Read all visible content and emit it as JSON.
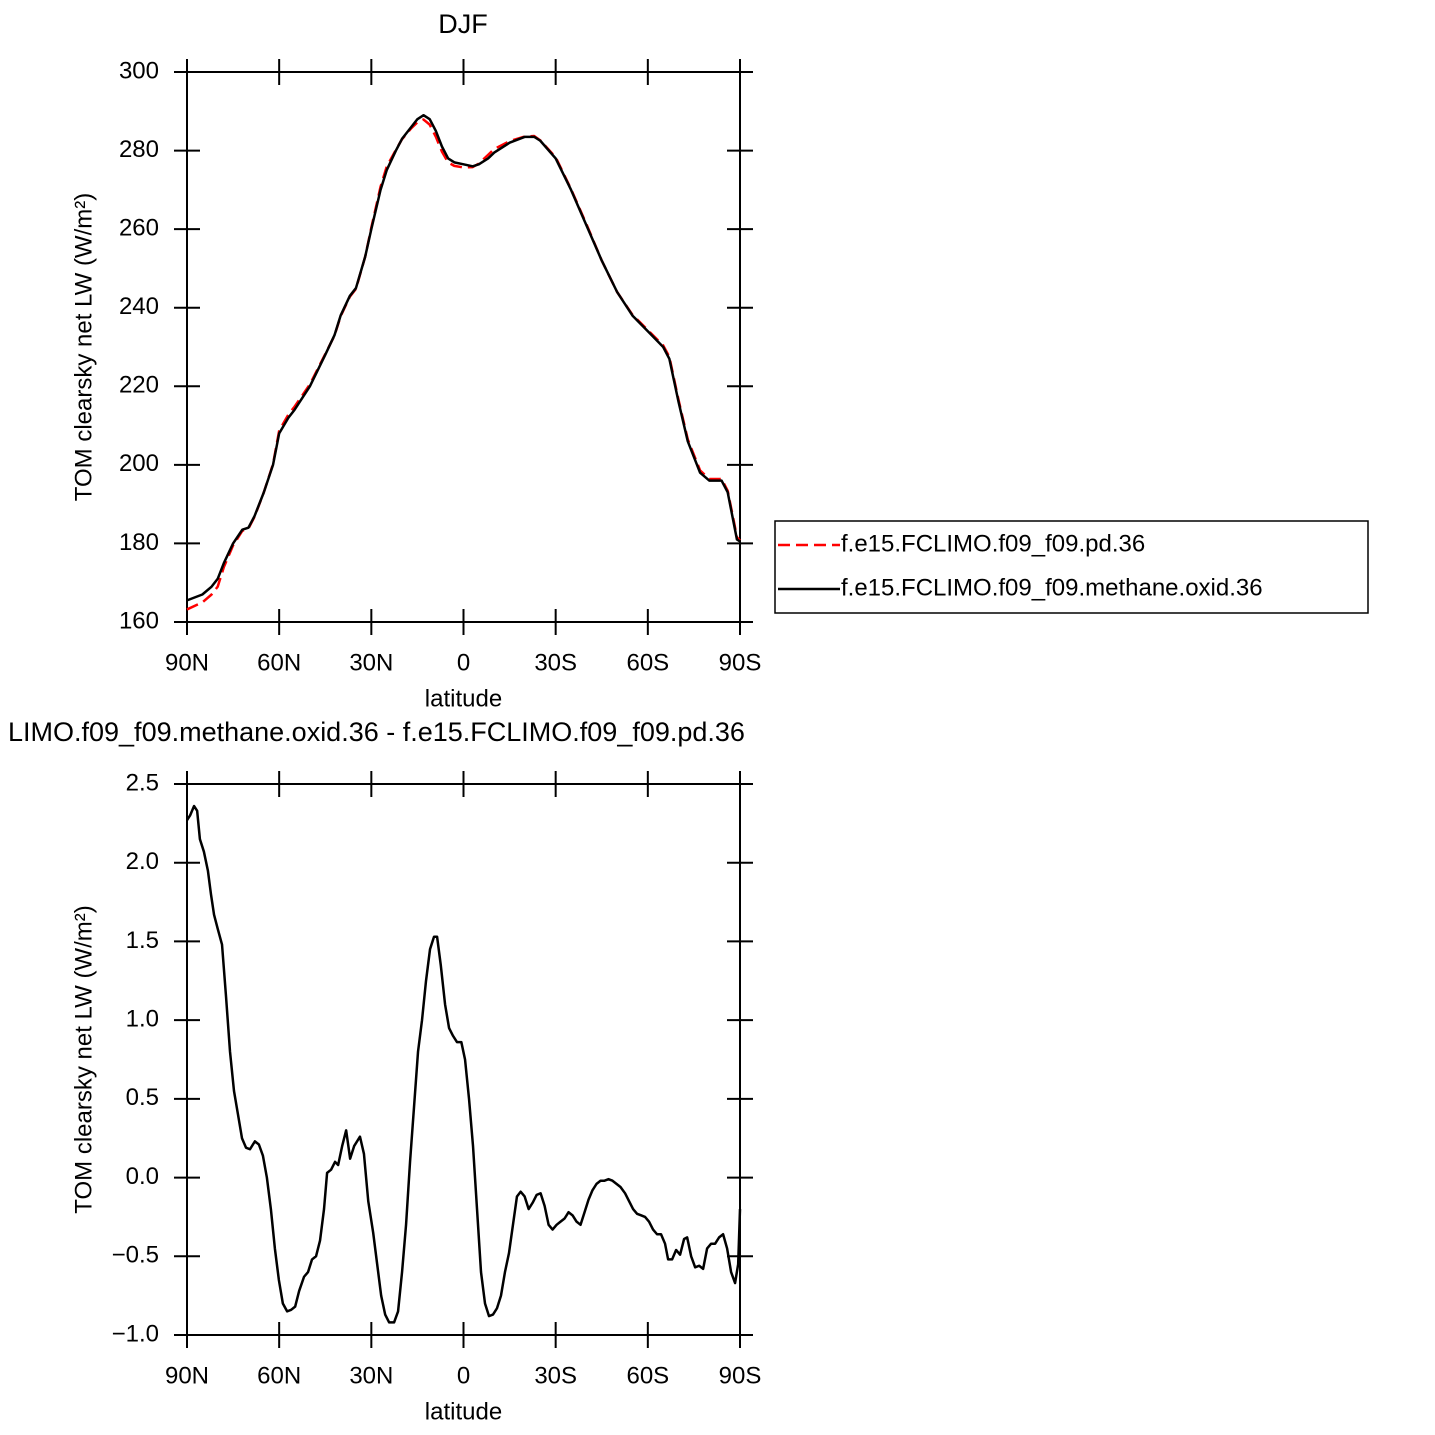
{
  "chart_data": [
    {
      "type": "line",
      "title": "DJF",
      "x_label": "latitude",
      "y_label": "TOM clearsky net LW (W/m²)",
      "xlim": [
        90,
        -90
      ],
      "ylim": [
        160,
        300
      ],
      "xticks": [
        {
          "value": 90,
          "label": "90N"
        },
        {
          "value": 60,
          "label": "60N"
        },
        {
          "value": 30,
          "label": "30N"
        },
        0,
        {
          "value": -30,
          "label": "30S"
        },
        {
          "value": -60,
          "label": "60S"
        },
        {
          "value": -90,
          "label": "90S"
        }
      ],
      "yticks": [
        160,
        180,
        200,
        220,
        240,
        260,
        280,
        300
      ],
      "legend": "right",
      "x": [
        90,
        85,
        82,
        80,
        78,
        75,
        72,
        70,
        68,
        65,
        62,
        60,
        57,
        55,
        50,
        45,
        42,
        40,
        37,
        35,
        32,
        30,
        27,
        25,
        22,
        20,
        17,
        15,
        13,
        11,
        9,
        7,
        5,
        3,
        0,
        -3,
        -5,
        -8,
        -10,
        -15,
        -20,
        -23,
        -25,
        -30,
        -35,
        -40,
        -45,
        -50,
        -55,
        -60,
        -65,
        -67,
        -70,
        -73,
        -77,
        -80,
        -84,
        -86,
        -88,
        -89,
        -90
      ],
      "series": [
        {
          "name": "f.e15.FCLIMO.f09_f09.pd.36",
          "color": "#ff0000",
          "dashed": true,
          "values": [
            163.2,
            165,
            167,
            169,
            174,
            179.5,
            183.2,
            183.8,
            186.8,
            193,
            200.2,
            208.7,
            212.8,
            214.8,
            220.5,
            228.2,
            232.9,
            237.8,
            242.8,
            244.8,
            253,
            260.4,
            270.8,
            275.9,
            280.2,
            282.9,
            285.7,
            287.2,
            287.9,
            286.6,
            283.5,
            279.7,
            277,
            276.1,
            275.7,
            275.8,
            276.7,
            278.9,
            280.4,
            282.4,
            283.6,
            283.7,
            282.6,
            278.3,
            270.2,
            261.3,
            252,
            244,
            238.2,
            234.3,
            230.4,
            227.5,
            216.5,
            206.5,
            198.6,
            196.4,
            196.4,
            193.4,
            185.6,
            181.6,
            180.7
          ]
        },
        {
          "name": "f.e15.FCLIMO.f09_f09.methane.oxid.36",
          "color": "#000000",
          "dashed": false,
          "values": [
            165.5,
            167,
            169,
            171,
            175,
            180,
            183.5,
            184,
            187,
            193,
            200,
            208,
            212,
            214,
            220,
            228,
            233,
            238,
            243,
            245,
            253,
            260,
            270,
            275,
            280,
            283,
            286,
            288,
            289,
            288,
            285,
            281,
            278,
            277,
            276.5,
            276,
            276.5,
            278,
            279.5,
            282,
            283.5,
            283.5,
            282.5,
            278,
            270,
            261,
            252,
            244,
            238,
            234,
            230,
            227,
            216,
            206,
            198,
            196,
            196,
            193,
            185,
            181,
            180.5
          ]
        }
      ]
    },
    {
      "type": "line",
      "title": "LIMO.f09_f09.methane.oxid.36 - f.e15.FCLIMO.f09_f09.pd.36",
      "x_label": "latitude",
      "y_label": "TOM clearsky net LW (W/m²)",
      "xlim": [
        90,
        -90
      ],
      "ylim": [
        -1,
        2.5
      ],
      "xticks": [
        {
          "value": 90,
          "label": "90N"
        },
        {
          "value": 60,
          "label": "60N"
        },
        {
          "value": 30,
          "label": "30N"
        },
        0,
        {
          "value": -30,
          "label": "30S"
        },
        {
          "value": -60,
          "label": "60S"
        },
        {
          "value": -90,
          "label": "90S"
        }
      ],
      "yticks": [
        {
          "value": -1,
          "label": "−1.0"
        },
        {
          "value": -0.5,
          "label": "−0.5"
        },
        {
          "value": 0,
          "label": "0.0"
        },
        0.5,
        {
          "value": 1,
          "label": "1.0"
        },
        1.5,
        {
          "value": 2,
          "label": "2.0"
        },
        2.5
      ],
      "x": [
        90,
        89,
        87.7,
        86.7,
        85.8,
        84.5,
        83.2,
        82.2,
        81.2,
        80,
        78.6,
        77.3,
        76,
        74.7,
        73.4,
        72.1,
        70.8,
        69.5,
        67.9,
        66.6,
        65.3,
        64,
        62.7,
        61.4,
        60.1,
        58.8,
        57.4,
        56.1,
        54.8,
        53.5,
        51.9,
        50.6,
        49.3,
        48,
        46.7,
        45.4,
        44.4,
        43.1,
        41.8,
        40.8,
        39.5,
        38.2,
        36.9,
        35.6,
        33.7,
        32.4,
        31,
        29.4,
        28.1,
        26.8,
        25.5,
        24.2,
        22.6,
        21.3,
        20,
        18.7,
        17.4,
        16.1,
        14.8,
        13.5,
        12.2,
        10.9,
        9.6,
        8.6,
        7.4,
        6,
        4.7,
        3.4,
        2.1,
        0.7,
        -0.5,
        -1.8,
        -3.1,
        -4.4,
        -5.7,
        -7,
        -8.3,
        -9.6,
        -10.9,
        -12.2,
        -13.5,
        -14.8,
        -16.1,
        -17.4,
        -18.6,
        -19.9,
        -21.2,
        -22.5,
        -23.8,
        -25.1,
        -26.4,
        -27.7,
        -29,
        -30.3,
        -31.6,
        -32.9,
        -34.2,
        -35.5,
        -36.8,
        -38.1,
        -39.4,
        -40.7,
        -42,
        -43.3,
        -44.6,
        -45.9,
        -47.2,
        -48.5,
        -49.8,
        -51.1,
        -52.6,
        -53.9,
        -55.2,
        -56.5,
        -57.8,
        -59.1,
        -60.4,
        -61.7,
        -63,
        -64.3,
        -65.6,
        -66.6,
        -67.9,
        -69.2,
        -70.5,
        -71.8,
        -72.8,
        -74.1,
        -75.4,
        -76.7,
        -78,
        -79.3,
        -80.6,
        -81.9,
        -83.2,
        -84.5,
        -85.8,
        -87.1,
        -88.4,
        -89.4,
        -90
      ],
      "series": [
        {
          "color": "#000000",
          "dashed": false,
          "values": [
            2.27,
            2.3,
            2.36,
            2.33,
            2.15,
            2.07,
            1.95,
            1.8,
            1.67,
            1.58,
            1.48,
            1.15,
            0.8,
            0.55,
            0.4,
            0.25,
            0.19,
            0.18,
            0.23,
            0.21,
            0.14,
            0,
            -0.2,
            -0.45,
            -0.65,
            -0.8,
            -0.85,
            -0.84,
            -0.82,
            -0.72,
            -0.63,
            -0.6,
            -0.52,
            -0.5,
            -0.4,
            -0.2,
            0.03,
            0.05,
            0.1,
            0.08,
            0.2,
            0.3,
            0.12,
            0.2,
            0.26,
            0.15,
            -0.15,
            -0.35,
            -0.55,
            -0.75,
            -0.87,
            -0.92,
            -0.92,
            -0.85,
            -0.6,
            -0.3,
            0.1,
            0.45,
            0.8,
            1,
            1.25,
            1.45,
            1.53,
            1.53,
            1.35,
            1.1,
            0.95,
            0.9,
            0.86,
            0.86,
            0.75,
            0.5,
            0.2,
            -0.2,
            -0.6,
            -0.8,
            -0.88,
            -0.87,
            -0.83,
            -0.75,
            -0.6,
            -0.48,
            -0.3,
            -0.12,
            -0.09,
            -0.12,
            -0.2,
            -0.16,
            -0.11,
            -0.1,
            -0.18,
            -0.3,
            -0.33,
            -0.3,
            -0.28,
            -0.26,
            -0.22,
            -0.24,
            -0.28,
            -0.3,
            -0.22,
            -0.14,
            -0.08,
            -0.04,
            -0.02,
            -0.02,
            -0.01,
            -0.02,
            -0.04,
            -0.06,
            -0.1,
            -0.15,
            -0.2,
            -0.23,
            -0.24,
            -0.25,
            -0.28,
            -0.33,
            -0.36,
            -0.36,
            -0.42,
            -0.52,
            -0.52,
            -0.46,
            -0.49,
            -0.39,
            -0.38,
            -0.5,
            -0.57,
            -0.56,
            -0.58,
            -0.45,
            -0.42,
            -0.42,
            -0.38,
            -0.36,
            -0.45,
            -0.6,
            -0.67,
            -0.55,
            -0.2
          ]
        }
      ]
    }
  ]
}
